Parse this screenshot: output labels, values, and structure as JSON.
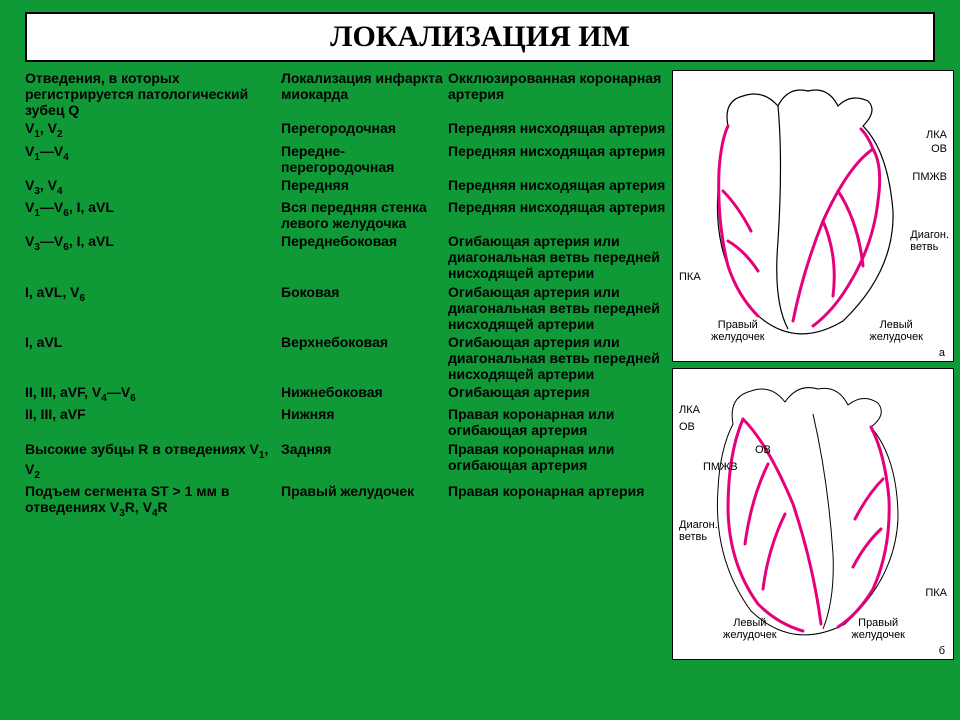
{
  "title": "ЛОКАЛИЗАЦИЯ ИМ",
  "headers": {
    "h1": "Отведения, в которых регистрируется патологический зубец Q",
    "h2": "Локализация инфаркта миокарда",
    "h3": "Окклюзированная коронарная артерия"
  },
  "rows": [
    {
      "lead": "V₁, V₂",
      "loc": "Перегородочная",
      "art": "Передняя нисходящая артерия"
    },
    {
      "lead": "V₁—V₄",
      "loc": "Передне-перегородочная",
      "art": "Передняя нисходящая артерия"
    },
    {
      "lead": "V₃, V₄",
      "loc": "Передняя",
      "art": "Передняя нисходящая артерия"
    },
    {
      "lead": "V₁—V₆, I, aVL",
      "loc": "Вся передняя стенка левого желудочка",
      "art": "Передняя нисходящая артерия"
    },
    {
      "lead": "V₃—V₆, I, aVL",
      "loc": "Переднебоковая",
      "art": "Огибающая артерия или диагональная ветвь передней нисходящей артерии"
    },
    {
      "lead": "I, aVL, V₆",
      "loc": "Боковая",
      "art": "Огибающая артерия или диагональная ветвь передней нисходящей артерии"
    },
    {
      "lead": "I, aVL",
      "loc": "Верхнебоковая",
      "art": "Огибающая артерия или диагональная ветвь передней нисходящей артерии"
    },
    {
      "lead": "II, III, aVF, V₄—V₆",
      "loc": "Нижнебоковая",
      "art": "Огибающая артерия"
    },
    {
      "lead": "II, III, aVF",
      "loc": "Нижняя",
      "art": "Правая коронарная или огибающая артерия"
    },
    {
      "lead": "Высокие зубцы R в отведениях V₁, V₂",
      "loc": "Задняя",
      "art": "Правая коронарная или огибающая артерия"
    },
    {
      "lead": "Подъем сегмента ST > 1 мм в отведениях V₃R, V₄R",
      "loc": "Правый желудочек",
      "art": "Правая коронарная артерия"
    }
  ],
  "fig1_labels": {
    "lka": "ЛКА",
    "ov": "ОВ",
    "pmzv": "ПМЖВ",
    "diag": "Диагон.\nветвь",
    "pka": "ПКА",
    "rv": "Правый\nжелудочек",
    "lv": "Левый\nжелудочек",
    "letter": "а"
  },
  "fig2_labels": {
    "lka": "ЛКА",
    "ov": "ОВ",
    "ov2": "ОВ",
    "pmzv": "ПМЖВ",
    "diag": "Диагон.\nветвь",
    "pka": "ПКА",
    "rv": "Левый\nжелудочек",
    "lv": "Правый\nжелудочек",
    "letter": "б"
  },
  "colors": {
    "page_bg": "#0f9a37",
    "title_bg": "#ffffff",
    "title_border": "#000000",
    "text": "#000000",
    "artery": "#e6007e",
    "heart_outline": "#000000",
    "heart_fill": "#ffffff"
  }
}
